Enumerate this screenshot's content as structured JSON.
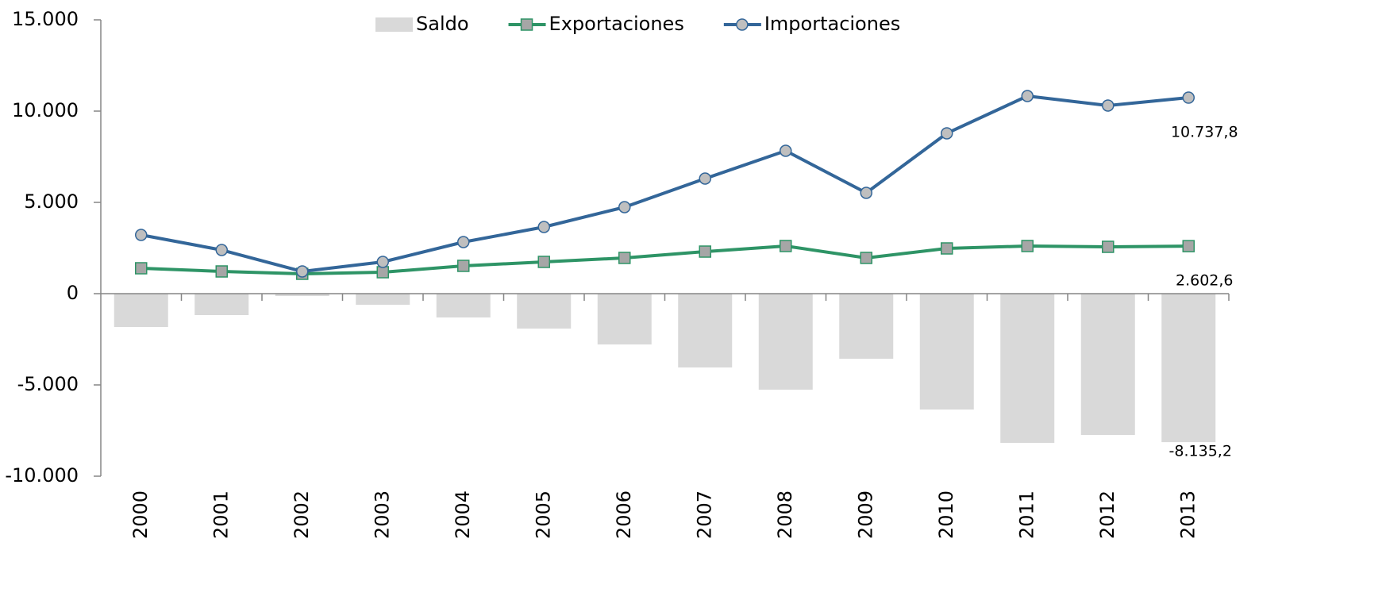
{
  "chart_data": {
    "type": "bar-line",
    "categories": [
      "2000",
      "2001",
      "2002",
      "2003",
      "2004",
      "2005",
      "2006",
      "2007",
      "2008",
      "2009",
      "2010",
      "2011",
      "2012",
      "2013"
    ],
    "series": [
      {
        "name": "Saldo",
        "type": "bar",
        "color": "#d9d9d9",
        "values": [
          -1826,
          -1174,
          -130,
          -609,
          -1304,
          -1913,
          -2783,
          -4043,
          -5261,
          -3565,
          -6348,
          -8174,
          -7739,
          -8135.2
        ],
        "value_labels": [
          null,
          null,
          null,
          null,
          null,
          null,
          null,
          null,
          null,
          null,
          null,
          null,
          null,
          "-8.135,2"
        ]
      },
      {
        "name": "Exportaciones",
        "type": "line",
        "marker": "square",
        "color": "#2e9466",
        "marker_color": "#a6a6a6",
        "values": [
          1391,
          1217,
          1087,
          1174,
          1522,
          1739,
          1957,
          2304,
          2609,
          1957,
          2478,
          2609,
          2565,
          2602.6
        ],
        "value_labels": [
          null,
          null,
          null,
          null,
          null,
          null,
          null,
          null,
          null,
          null,
          null,
          null,
          null,
          "2.602,6"
        ]
      },
      {
        "name": "Importaciones",
        "type": "line",
        "marker": "circle",
        "color": "#336699",
        "marker_color": "#bfbfbf",
        "values": [
          3217,
          2391,
          1217,
          1739,
          2826,
          3652,
          4739,
          6304,
          7826,
          5522,
          8783,
          10826,
          10304,
          10737.8
        ],
        "value_labels": [
          null,
          null,
          null,
          null,
          null,
          null,
          null,
          null,
          null,
          null,
          null,
          null,
          null,
          "10.737,8"
        ]
      }
    ],
    "ylim": [
      -10000,
      15000
    ],
    "yticks": [
      {
        "value": -10000,
        "label": "-10.000"
      },
      {
        "value": -5000,
        "label": "-5.000"
      },
      0,
      {
        "value": 5000,
        "label": "5.000"
      },
      {
        "value": 10000,
        "label": "10.000"
      },
      {
        "value": 15000,
        "label": "15.000"
      }
    ],
    "grid": false,
    "legend": "top"
  }
}
